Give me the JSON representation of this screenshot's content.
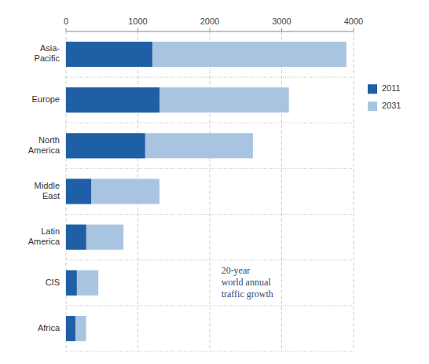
{
  "chart_data": {
    "type": "bar",
    "orientation": "horizontal",
    "categories": [
      "Asia-\nPacific",
      "Europe",
      "North\nAmerica",
      "Middle\nEast",
      "Latin\nAmerica",
      "CIS",
      "Africa"
    ],
    "series": [
      {
        "name": "2011",
        "color": "#1f5fa6",
        "values": [
          1200,
          1300,
          1100,
          350,
          280,
          150,
          130
        ]
      },
      {
        "name": "2031",
        "color": "#a8c4e0",
        "values": [
          3900,
          3100,
          2600,
          1300,
          800,
          450,
          280
        ]
      }
    ],
    "xlim": [
      0,
      4000
    ],
    "xticks": [
      0,
      1000,
      2000,
      3000,
      4000
    ],
    "grid": true,
    "legend": "right",
    "annotation": "20-year\nworld annual\ntraffic growth"
  }
}
